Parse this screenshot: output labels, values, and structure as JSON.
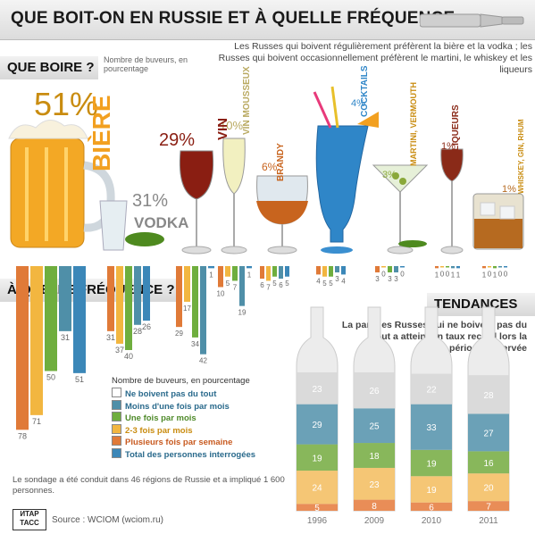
{
  "title": "QUE BOIT-ON EN RUSSIE ET À QUELLE FRÉQUENCE",
  "sections": {
    "what": "QUE BOIRE ?",
    "how_often": "À QUELLE FRÉQUENCE ?",
    "trends": "TENDANCES"
  },
  "what_note": "Nombre de buveurs, en pourcentage",
  "intro": "Les Russes qui boivent régulièrement préfèrent la bière et la vodka ; les Russes qui boivent occasionnellement préfèrent le martini, le whiskey et les liqueurs",
  "trend_note": "La part des Russes qui ne boivent pas du tout a atteint un taux record lors la période observée",
  "legend_title": "Nombre de buveurs, en pourcentage",
  "legend": [
    {
      "label": "Ne boivent pas du tout",
      "color": "#ffffff",
      "text_color": "#2a6a8c"
    },
    {
      "label": "Moins d'une fois par mois",
      "color": "#4f8fa8",
      "text_color": "#2a6a8c"
    },
    {
      "label": "Une fois par mois",
      "color": "#6fae3e",
      "text_color": "#4f8a2a"
    },
    {
      "label": "2-3 fois par mois",
      "color": "#f2b640",
      "text_color": "#c98c10"
    },
    {
      "label": "Plusieurs fois par semaine",
      "color": "#e07a38",
      "text_color": "#c85a20"
    },
    {
      "label": "Total des personnes interrogées",
      "color": "#3b87b8",
      "text_color": "#2a6a8c"
    }
  ],
  "footnote": "Le sondage a été conduit dans 46 régions de Russie et a impliqué 1 600 personnes.",
  "source": "Source : WCIOM (wciom.ru)",
  "logo": "ИТАР ТАСС",
  "chart_data": [
    {
      "type": "bar",
      "title": "QUE BOIRE ?",
      "ylabel": "Nombre de buveurs, en pourcentage",
      "categories": [
        "BIÈRE",
        "VODKA",
        "VIN",
        "VIN MOUSSEUX",
        "BRANDY",
        "COCKTAILS",
        "MARTINI, VERMOUTH",
        "LIQUEURS",
        "WHISKEY, GIN, RHUM"
      ],
      "values": [
        51,
        31,
        29,
        10,
        6,
        4,
        3,
        1,
        1
      ],
      "value_labels": [
        "51%",
        "31%",
        "29%",
        "10%",
        "6%",
        "4%",
        "3%",
        "1%",
        "1%"
      ]
    },
    {
      "type": "bar",
      "title": "À QUELLE FRÉQUENCE ?",
      "ylabel": "Nombre de buveurs, en pourcentage",
      "categories": [
        "BIÈRE",
        "VODKA",
        "VIN",
        "VIN MOUSSEUX",
        "BRANDY",
        "COCKTAILS",
        "MARTINI, VERMOUTH",
        "LIQUEURS",
        "WHISKEY, GIN, RHUM"
      ],
      "series": [
        {
          "name": "Plusieurs fois par semaine",
          "values": [
            78,
            31,
            29,
            10,
            6,
            4,
            3,
            1,
            1
          ]
        },
        {
          "name": "2-3 fois par mois",
          "values": [
            71,
            37,
            17,
            5,
            7,
            5,
            0,
            0,
            0
          ]
        },
        {
          "name": "Une fois par mois",
          "values": [
            50,
            40,
            34,
            7,
            5,
            5,
            3,
            0,
            1
          ]
        },
        {
          "name": "Moins d'une fois par mois",
          "values": [
            31,
            28,
            42,
            19,
            6,
            3,
            3,
            1,
            0
          ]
        },
        {
          "name": "Total des personnes interrogées",
          "values": [
            51,
            26,
            1,
            1,
            5,
            4,
            0,
            1,
            0
          ]
        }
      ]
    },
    {
      "type": "bar",
      "title": "TENDANCES",
      "categories": [
        "1996",
        "2009",
        "2010",
        "2011"
      ],
      "series": [
        {
          "name": "Plusieurs fois par semaine",
          "values": [
            5,
            8,
            6,
            7
          ]
        },
        {
          "name": "2-3 fois par mois",
          "values": [
            24,
            23,
            19,
            20
          ]
        },
        {
          "name": "Une fois par mois",
          "values": [
            19,
            18,
            19,
            16
          ]
        },
        {
          "name": "Moins d'une fois par mois",
          "values": [
            29,
            25,
            33,
            27
          ]
        },
        {
          "name": "Ne boivent pas du tout",
          "values": [
            23,
            26,
            22,
            28
          ]
        }
      ]
    }
  ]
}
